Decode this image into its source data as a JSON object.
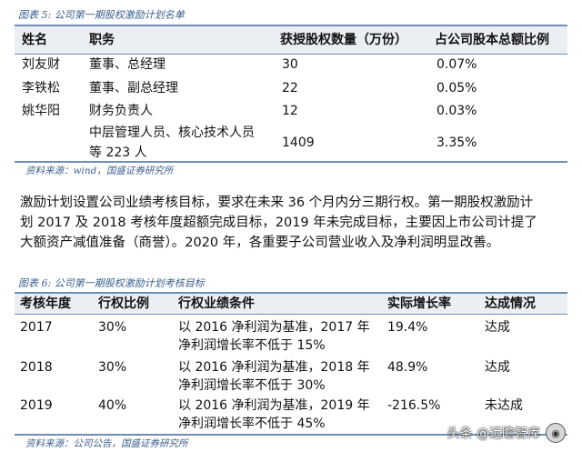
{
  "table1": {
    "caption": "图表 5:  公司第一期股权激励计划名单",
    "headers": [
      "姓名",
      "职务",
      "获授股权数量（万份）",
      "占公司股本总额比例"
    ],
    "rows": [
      {
        "name": "刘友财",
        "role": "董事、总经理",
        "role2": "",
        "qty": "30",
        "pct": "0.07%"
      },
      {
        "name": "李铁松",
        "role": "董事、副总经理",
        "role2": "",
        "qty": "22",
        "pct": "0.05%"
      },
      {
        "name": "姚华阳",
        "role": "财务负责人",
        "role2": "",
        "qty": "12",
        "pct": "0.03%"
      },
      {
        "name": "",
        "role": "中层管理人员、核心技术人员",
        "role2": "等 223 人",
        "qty": "1409",
        "pct": "3.35%"
      }
    ],
    "source": "资料来源：wind，国盛证券研究所"
  },
  "paragraph": {
    "line1": "激励计划设置公司业绩考核目标，要求在未来 36 个月内分三期行权。第一期股权激励计",
    "line2": "划 2017 及 2018 考核年度超额完成目标，2019 年未完成目标，主要因上市公司计提了",
    "line3": "大额资产减值准备（商誉）。2020 年，各重要子公司营业收入及净利润明显改善。"
  },
  "table2": {
    "caption": "图表 6:  公司第一期股权激励计划考核目标",
    "headers": [
      "考核年度",
      "行权比例",
      "行权业绩条件",
      "实际增长率",
      "达成情况"
    ],
    "rows": [
      {
        "year": "2017",
        "ratio": "30%",
        "cond1": "以 2016 净利润为基准，2017 年",
        "cond2": "净利润增长率不低于 15%",
        "growth": "19.4%",
        "status": "达成"
      },
      {
        "year": "2018",
        "ratio": "30%",
        "cond1": "以 2016 净利润为基准，2018 年",
        "cond2": "净利润增长率不低于 30%",
        "growth": "48.9%",
        "status": "达成"
      },
      {
        "year": "2019",
        "ratio": "40%",
        "cond1": "以 2016 净利润为基准，2019 年",
        "cond2": "净利润增长率不低于 45%",
        "growth": "-216.5%",
        "status": "未达成"
      }
    ],
    "source": "资料来源：公司公告，国盛证券研究所"
  },
  "watermark": {
    "text": "头条 @远瞻智库",
    "icon": "avatar-icon"
  }
}
